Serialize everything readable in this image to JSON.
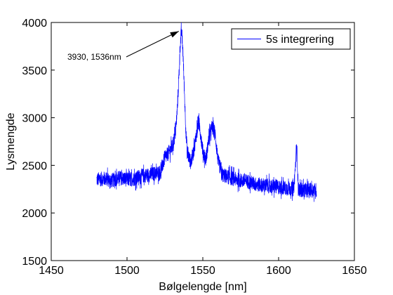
{
  "chart_data": {
    "type": "line",
    "title": "",
    "xlabel": "Bølgelengde [nm]",
    "ylabel": "Lysmengde",
    "xlim": [
      1450,
      1650
    ],
    "ylim": [
      1500,
      4000
    ],
    "xticks": [
      1450,
      1500,
      1550,
      1600,
      1650
    ],
    "yticks": [
      1500,
      2000,
      2500,
      3000,
      3500,
      4000
    ],
    "grid": false,
    "legend_position": "top-right",
    "series": [
      {
        "name": "5s integrering",
        "color": "#0000ff",
        "noise_amplitude": 120,
        "x": [
          1480,
          1485,
          1490,
          1495,
          1500,
          1505,
          1510,
          1515,
          1520,
          1522,
          1525,
          1527,
          1530,
          1532,
          1533,
          1534,
          1535,
          1536,
          1537,
          1538,
          1539,
          1540,
          1542,
          1544,
          1546,
          1547,
          1548,
          1550,
          1552,
          1554,
          1556,
          1558,
          1560,
          1563,
          1566,
          1570,
          1575,
          1580,
          1585,
          1590,
          1595,
          1600,
          1605,
          1610,
          1612,
          1613,
          1615,
          1620,
          1625
        ],
        "y": [
          2350,
          2360,
          2340,
          2370,
          2350,
          2360,
          2390,
          2400,
          2420,
          2430,
          2580,
          2620,
          2700,
          2850,
          3050,
          3350,
          3750,
          3930,
          3650,
          3200,
          2800,
          2620,
          2530,
          2650,
          2850,
          2950,
          2900,
          2650,
          2560,
          2780,
          2900,
          2850,
          2550,
          2400,
          2380,
          2360,
          2340,
          2330,
          2300,
          2290,
          2280,
          2270,
          2260,
          2250,
          2700,
          2250,
          2240,
          2240,
          2240
        ]
      }
    ],
    "annotations": [
      {
        "text": "3930, 1536nm",
        "x": 1536,
        "y": 3930
      }
    ]
  }
}
